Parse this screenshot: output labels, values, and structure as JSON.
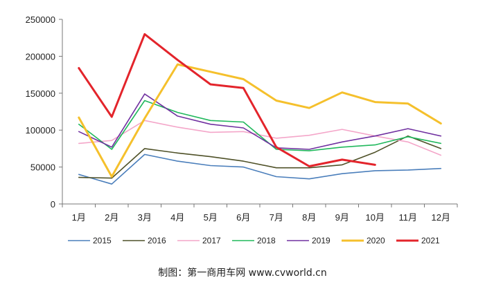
{
  "chart_data": {
    "type": "line",
    "categories": [
      "1月",
      "2月",
      "3月",
      "4月",
      "5月",
      "6月",
      "7月",
      "8月",
      "9月",
      "10月",
      "11月",
      "12月"
    ],
    "ylim": [
      0,
      250000
    ],
    "y_ticks": [
      "0",
      "50000",
      "100000",
      "150000",
      "200000",
      "250000"
    ],
    "grid": false,
    "legend_placement": "bottom",
    "series": [
      {
        "name": "2015",
        "color": "#4a7ebb",
        "width": 1.6,
        "values": [
          40000,
          27000,
          67000,
          58000,
          52000,
          50000,
          37000,
          34000,
          41000,
          45000,
          46000,
          48000
        ]
      },
      {
        "name": "2016",
        "color": "#4f5128",
        "width": 1.6,
        "values": [
          36000,
          35000,
          75000,
          69000,
          64000,
          58000,
          49000,
          49000,
          53000,
          70000,
          92000,
          75000
        ]
      },
      {
        "name": "2017",
        "color": "#f4a6c9",
        "width": 1.6,
        "values": [
          82000,
          86000,
          113000,
          104000,
          97000,
          98000,
          89000,
          93000,
          101000,
          92000,
          84000,
          66000
        ]
      },
      {
        "name": "2018",
        "color": "#20b85c",
        "width": 1.6,
        "values": [
          108000,
          74000,
          140000,
          124000,
          113000,
          111000,
          74000,
          72000,
          77000,
          80000,
          91000,
          82000
        ]
      },
      {
        "name": "2019",
        "color": "#7030a0",
        "width": 1.6,
        "values": [
          98000,
          77000,
          149000,
          119000,
          108000,
          103000,
          76000,
          74000,
          84000,
          92000,
          102000,
          92000
        ]
      },
      {
        "name": "2020",
        "color": "#f5c02c",
        "width": 3,
        "values": [
          117000,
          37000,
          116000,
          189000,
          179000,
          169000,
          140000,
          130000,
          151000,
          138000,
          136000,
          109000
        ]
      },
      {
        "name": "2021",
        "color": "#e3242b",
        "width": 3,
        "values": [
          184000,
          118000,
          230000,
          195000,
          162000,
          157000,
          77000,
          51000,
          60000,
          53000,
          null,
          null
        ]
      }
    ]
  },
  "caption": "制图：第一商用车网 www.cvworld.cn"
}
